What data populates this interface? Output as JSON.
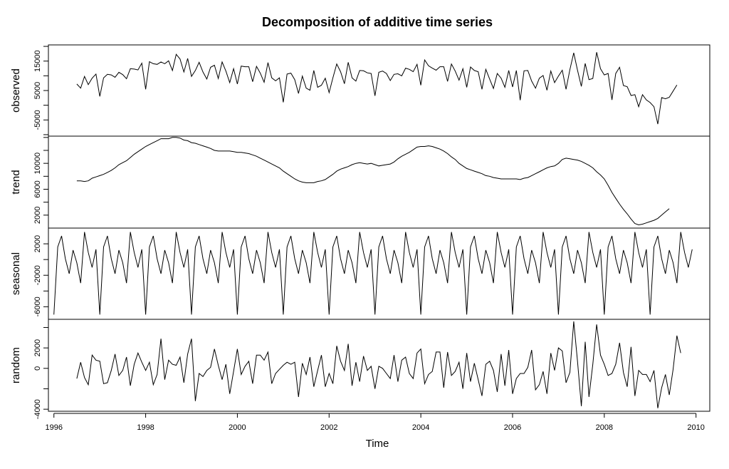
{
  "chart_data": {
    "type": "line",
    "title": "Decomposition of additive time series",
    "xlabel": "Time",
    "xlim": [
      1995.88,
      2010.3
    ],
    "x_ticks": [
      "1996",
      "1998",
      "2000",
      "2002",
      "2004",
      "2006",
      "2008",
      "2010"
    ],
    "line_color": "#000000",
    "panels": [
      {
        "name": "observed",
        "ylabel": "observed",
        "ylim": [
          -10500,
          20500
        ],
        "yticks": [
          "-5000",
          "5000",
          "15000"
        ],
        "start": 1996.5,
        "values": [
          7200,
          5800,
          9800,
          7000,
          9200,
          10600,
          3000,
          9300,
          10500,
          10300,
          9500,
          11200,
          10400,
          9000,
          12400,
          12300,
          12000,
          14300,
          5400,
          14800,
          14100,
          13900,
          14700,
          14100,
          15100,
          11800,
          17300,
          15700,
          11300,
          15900,
          9800,
          11800,
          14600,
          11300,
          8900,
          12900,
          13600,
          9100,
          14700,
          11600,
          7700,
          12400,
          7200,
          13300,
          13100,
          13100,
          8000,
          13200,
          10900,
          7800,
          14500,
          9300,
          8300,
          9300,
          1000,
          10600,
          10900,
          8700,
          4000,
          9900,
          5800,
          5100,
          11800,
          6100,
          6800,
          9200,
          4300,
          9300,
          14000,
          11400,
          7300,
          14600,
          9300,
          8200,
          11800,
          11700,
          11000,
          10800,
          3200,
          11200,
          11600,
          10800,
          8400,
          10500,
          10700,
          10000,
          12600,
          12200,
          11400,
          13900,
          6800,
          15400,
          13400,
          12600,
          11900,
          13100,
          13100,
          8100,
          14000,
          11600,
          8500,
          12400,
          6100,
          13000,
          11800,
          11400,
          5400,
          12200,
          8900,
          5700,
          10800,
          9200,
          6100,
          11800,
          6200,
          11800,
          1700,
          11700,
          11800,
          8200,
          5800,
          9200,
          10100,
          5100,
          11600,
          7700,
          9900,
          11900,
          5400,
          12100,
          17800,
          11900,
          6400,
          14200,
          8700,
          9100,
          18000,
          12400,
          10300,
          10800,
          1800,
          10800,
          12900,
          6700,
          6300,
          3300,
          3600,
          -500,
          3600,
          1800,
          900,
          -500,
          -6400,
          2600,
          2200,
          2700,
          4800,
          6900
        ]
      },
      {
        "name": "trend",
        "ylabel": "trend",
        "ylim": [
          0,
          14200
        ],
        "yticks": [
          "2000",
          "6000",
          "10000"
        ],
        "start": 1996.5,
        "values": [
          7300,
          7300,
          7200,
          7300,
          7700,
          7900,
          8100,
          8300,
          8600,
          8900,
          9300,
          9800,
          10100,
          10400,
          10900,
          11400,
          11800,
          12200,
          12600,
          12900,
          13200,
          13500,
          13800,
          13800,
          13800,
          14000,
          14000,
          13900,
          13600,
          13500,
          13200,
          13100,
          12900,
          12700,
          12500,
          12300,
          12000,
          11900,
          11900,
          11900,
          11900,
          11800,
          11700,
          11700,
          11600,
          11500,
          11300,
          11100,
          10800,
          10500,
          10200,
          9900,
          9600,
          9300,
          8800,
          8400,
          8000,
          7600,
          7300,
          7100,
          7000,
          7000,
          7000,
          7200,
          7300,
          7500,
          7900,
          8300,
          8800,
          9100,
          9300,
          9500,
          9800,
          10000,
          10100,
          10000,
          9900,
          10000,
          9800,
          9600,
          9700,
          9800,
          9900,
          10200,
          10700,
          11100,
          11400,
          11700,
          12100,
          12500,
          12600,
          12600,
          12700,
          12600,
          12400,
          12200,
          11900,
          11500,
          11000,
          10600,
          10000,
          9600,
          9200,
          9000,
          8800,
          8600,
          8400,
          8100,
          8000,
          7800,
          7700,
          7600,
          7600,
          7600,
          7600,
          7600,
          7500,
          7700,
          7800,
          8100,
          8400,
          8700,
          9000,
          9300,
          9500,
          9600,
          10000,
          10600,
          10800,
          10700,
          10600,
          10500,
          10300,
          10000,
          9700,
          9300,
          8700,
          8200,
          7600,
          6600,
          5500,
          4600,
          3700,
          2900,
          2200,
          1400,
          700,
          500,
          600,
          800,
          1000,
          1200,
          1500,
          2000,
          2500,
          3000
        ]
      },
      {
        "name": "seasonal",
        "ylabel": "seasonal",
        "ylim": [
          -7600,
          4000
        ],
        "yticks": [
          "-6000",
          "-2000",
          "2000"
        ],
        "start": 1996.0,
        "values": [
          -7000,
          1600,
          3000,
          100,
          -1800,
          1200,
          -400,
          -3000,
          3500,
          900,
          -1000,
          1300,
          -7000,
          1600,
          3000,
          100,
          -1800,
          1200,
          -400,
          -3000,
          3500,
          900,
          -1000,
          1300,
          -7000,
          1600,
          3000,
          100,
          -1800,
          1200,
          -400,
          -3000,
          3500,
          900,
          -1000,
          1300,
          -7000,
          1600,
          3000,
          100,
          -1800,
          1200,
          -400,
          -3000,
          3500,
          900,
          -1000,
          1300,
          -7000,
          1600,
          3000,
          100,
          -1800,
          1200,
          -400,
          -3000,
          3500,
          900,
          -1000,
          1300,
          -7000,
          1600,
          3000,
          100,
          -1800,
          1200,
          -400,
          -3000,
          3500,
          900,
          -1000,
          1300,
          -7000,
          1600,
          3000,
          100,
          -1800,
          1200,
          -400,
          -3000,
          3500,
          900,
          -1000,
          1300,
          -7000,
          1600,
          3000,
          100,
          -1800,
          1200,
          -400,
          -3000,
          3500,
          900,
          -1000,
          1300,
          -7000,
          1600,
          3000,
          100,
          -1800,
          1200,
          -400,
          -3000,
          3500,
          900,
          -1000,
          1300,
          -7000,
          1600,
          3000,
          100,
          -1800,
          1200,
          -400,
          -3000,
          3500,
          900,
          -1000,
          1300,
          -7000,
          1600,
          3000,
          100,
          -1800,
          1200,
          -400,
          -3000,
          3500,
          900,
          -1000,
          1300,
          -7000,
          1600,
          3000,
          100,
          -1800,
          1200,
          -400,
          -3000,
          3500,
          900,
          -1000,
          1300,
          -7000,
          1600,
          3000,
          100,
          -1800,
          1200,
          -400,
          -3000,
          3500,
          900,
          -1000,
          1300,
          -7000,
          1600,
          3000,
          100,
          -1800,
          1200,
          -400,
          -3000,
          3500,
          900,
          -1000,
          1300
        ]
      },
      {
        "name": "random",
        "ylabel": "random",
        "ylim": [
          -4200,
          4800
        ],
        "yticks": [
          "-4000",
          "0",
          "2000"
        ],
        "start": 1996.5,
        "values": [
          -1000,
          600,
          -900,
          -1600,
          1300,
          800,
          700,
          -1500,
          -1400,
          -200,
          1400,
          -700,
          -200,
          1100,
          -1700,
          400,
          1500,
          600,
          -200,
          600,
          -1600,
          -600,
          2900,
          -1100,
          800,
          400,
          300,
          1100,
          -1400,
          1400,
          2900,
          -3200,
          -500,
          -800,
          -200,
          100,
          1900,
          300,
          -1100,
          400,
          -2500,
          -300,
          1900,
          -600,
          200,
          700,
          -1500,
          1300,
          1300,
          800,
          1600,
          -1500,
          -500,
          -100,
          300,
          600,
          400,
          600,
          -2800,
          500,
          -600,
          1100,
          -1800,
          -200,
          1300,
          -1800,
          -500,
          -1500,
          2200,
          700,
          -200,
          2400,
          -1700,
          600,
          -1300,
          1200,
          -200,
          200,
          -2000,
          200,
          0,
          -500,
          -1000,
          1300,
          -1300,
          800,
          1100,
          -500,
          -1000,
          1500,
          1900,
          -1500,
          -600,
          -300,
          1600,
          1600,
          -1900,
          1600,
          -700,
          -300,
          600,
          -2000,
          1500,
          -1300,
          500,
          -1100,
          -2700,
          400,
          700,
          -200,
          -2300,
          1400,
          -1700,
          1800,
          -2500,
          -1000,
          -500,
          -500,
          100,
          1800,
          -2100,
          -1600,
          -300,
          -2500,
          1500,
          -200,
          2000,
          1700,
          -1400,
          -400,
          4600,
          700,
          -3700,
          2600,
          -2800,
          400,
          4300,
          1300,
          400,
          -700,
          -500,
          400,
          2500,
          -400,
          -1800,
          2100,
          -2700,
          -200,
          -600,
          -600,
          -1300,
          -200,
          -3900,
          -1900,
          -600,
          -2600,
          -100,
          3200,
          1500
        ]
      }
    ]
  }
}
